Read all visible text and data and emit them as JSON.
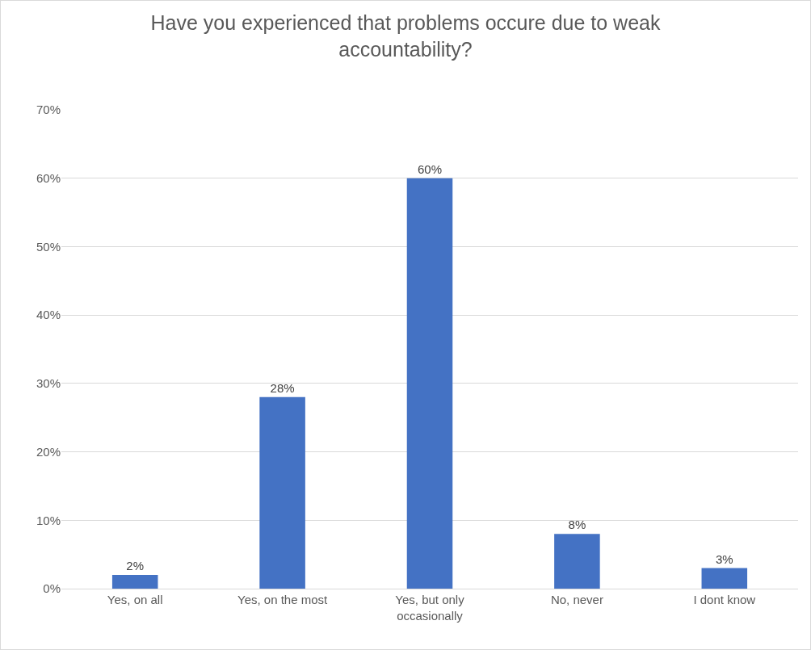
{
  "chart_data": {
    "type": "bar",
    "title": "Have you experienced that problems occure due to weak accountability?",
    "categories": [
      "Yes, on all",
      "Yes, on the most",
      "Yes, but only occasionally",
      "No, never",
      "I dont know"
    ],
    "values": [
      2,
      28,
      60,
      8,
      3
    ],
    "value_labels": [
      "2%",
      "28%",
      "60%",
      "8%",
      "3%"
    ],
    "color": "#4472c4",
    "ylim": [
      0,
      70
    ],
    "yticks": [
      {
        "value": 0,
        "label": "0%"
      },
      {
        "value": 10,
        "label": "10%"
      },
      {
        "value": 20,
        "label": "20%"
      },
      {
        "value": 30,
        "label": "30%"
      },
      {
        "value": 40,
        "label": "40%"
      },
      {
        "value": 50,
        "label": "50%"
      },
      {
        "value": 60,
        "label": "60%"
      },
      {
        "value": 70,
        "label": "70%"
      }
    ],
    "grid": "y"
  }
}
